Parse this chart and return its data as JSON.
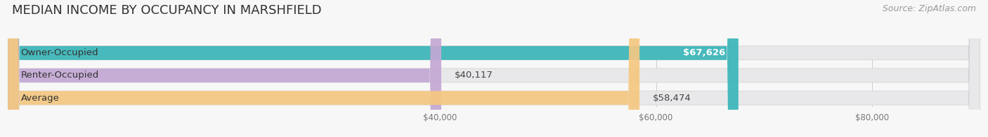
{
  "title": "MEDIAN INCOME BY OCCUPANCY IN MARSHFIELD",
  "source": "Source: ZipAtlas.com",
  "categories": [
    "Owner-Occupied",
    "Renter-Occupied",
    "Average"
  ],
  "values": [
    67626,
    40117,
    58474
  ],
  "bar_colors": [
    "#3ab5b8",
    "#c4a8d4",
    "#f5c882"
  ],
  "bar_bg_color": "#e8e8ea",
  "value_labels": [
    "$67,626",
    "$40,117",
    "$58,474"
  ],
  "xmin": 0,
  "xmax": 90000,
  "xlim_display": [
    30000,
    90000
  ],
  "xticks": [
    40000,
    60000,
    80000
  ],
  "xtick_labels": [
    "$40,000",
    "$60,000",
    "$80,000"
  ],
  "title_fontsize": 13,
  "source_fontsize": 9,
  "bar_label_fontsize": 9.5,
  "value_label_fontsize": 9.5,
  "background_color": "#f7f7f7",
  "bar_height": 0.62,
  "bar_rounding": 0.3
}
